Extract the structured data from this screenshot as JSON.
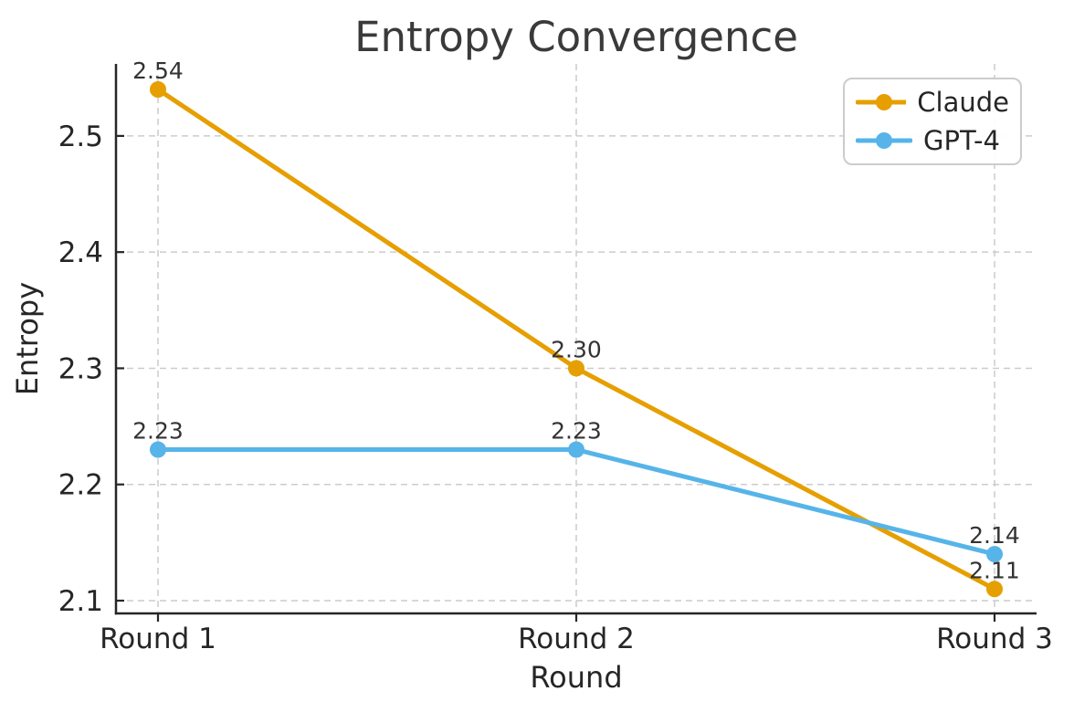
{
  "chart_data": {
    "type": "line",
    "title": "Entropy Convergence",
    "xlabel": "Round",
    "ylabel": "Entropy",
    "categories": [
      "Round 1",
      "Round 2",
      "Round 3"
    ],
    "series": [
      {
        "name": "Claude",
        "color": "#E69F00",
        "values": [
          2.54,
          2.3,
          2.11
        ],
        "point_labels": [
          "2.54",
          "2.30",
          "2.11"
        ]
      },
      {
        "name": "GPT-4",
        "color": "#56B4E9",
        "values": [
          2.23,
          2.23,
          2.14
        ],
        "point_labels": [
          "2.23",
          "2.23",
          "2.14"
        ]
      }
    ],
    "yticks": [
      2.1,
      2.2,
      2.3,
      2.4,
      2.5
    ],
    "ytick_labels": [
      "2.1",
      "2.2",
      "2.3",
      "2.4",
      "2.5"
    ],
    "ylim": [
      2.089,
      2.562
    ],
    "grid": true,
    "grid_style": "dashed",
    "legend_position": "upper right",
    "colors": {
      "grid": "#cccccc",
      "spine": "#262626",
      "tick_label": "#262626",
      "title": "#3a3a3a",
      "annotation": "#333333",
      "legend_border": "#cccccc"
    }
  }
}
